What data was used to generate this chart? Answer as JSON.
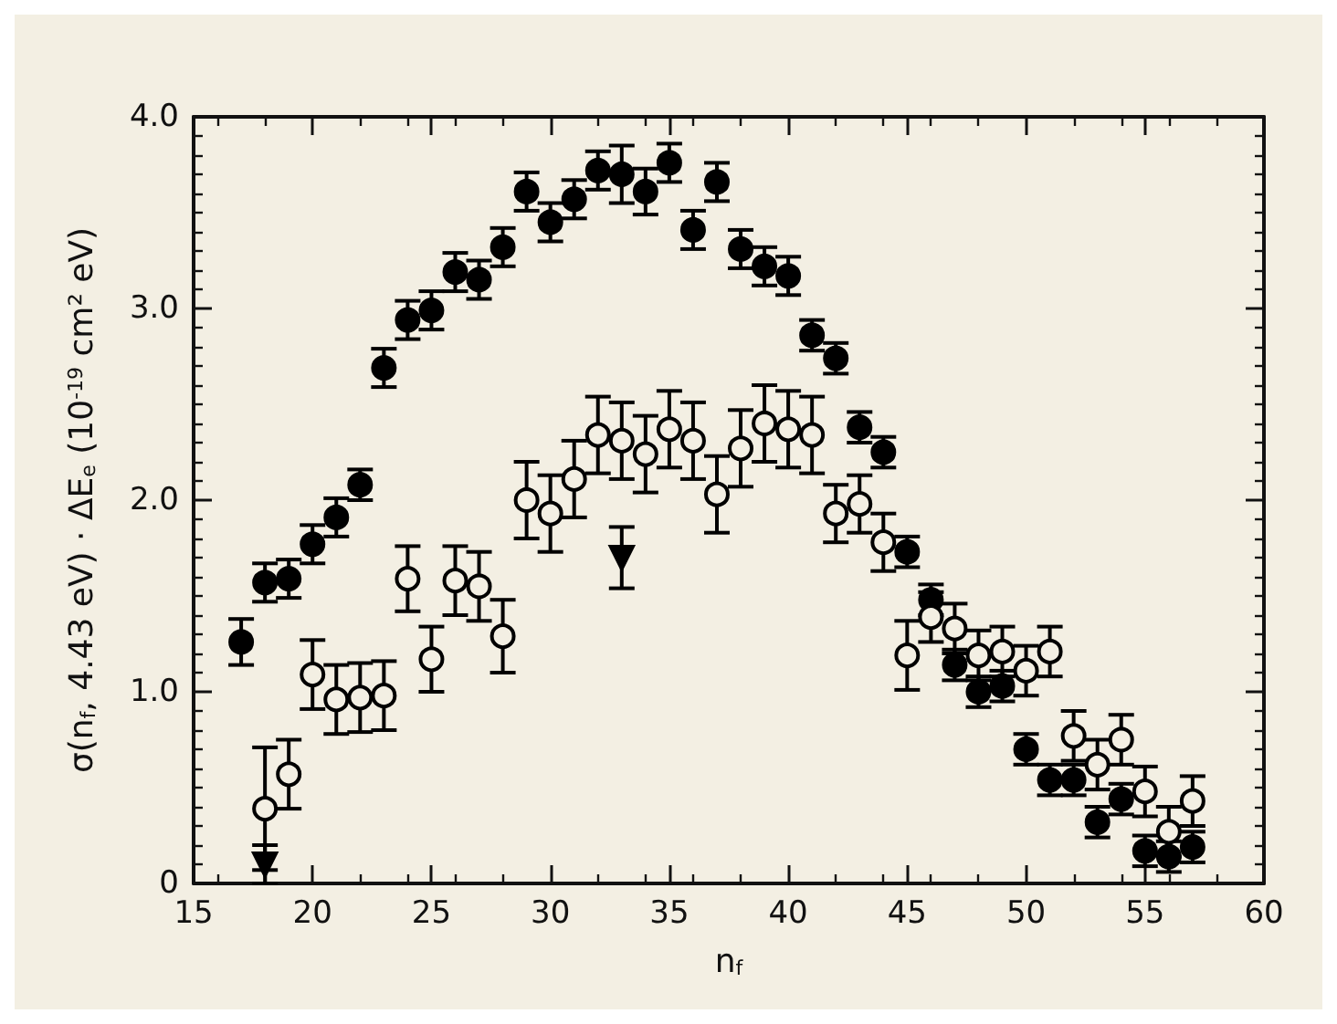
{
  "chart_data": {
    "type": "scatter",
    "xlabel": "n$_{f}$",
    "ylabel": "σ(n$_{f}$, 4.43 eV) · ΔE$_{e}$ (10$^{-19}$ cm² eV)",
    "xlim": [
      15,
      60
    ],
    "xticks": [
      15,
      20,
      25,
      30,
      35,
      40,
      45,
      50,
      55,
      60
    ],
    "ylim": [
      0,
      4
    ],
    "yticks": [
      0,
      {
        "value": 1,
        "label": "1.0"
      },
      {
        "value": 2,
        "label": "2.0"
      },
      {
        "value": 3,
        "label": "3.0"
      },
      {
        "value": 4,
        "label": "4.0"
      }
    ],
    "grid": false,
    "series": [
      {
        "color": "#000000",
        "marker": "circle",
        "x": [
          17,
          18,
          19,
          20,
          21,
          22,
          23,
          24,
          25,
          26,
          27,
          28,
          29,
          30,
          31,
          32,
          33,
          34,
          35,
          36,
          37,
          38,
          39,
          40,
          41,
          42,
          43,
          44,
          45,
          46,
          47,
          48,
          49,
          50,
          51,
          52,
          53,
          54,
          55,
          56,
          57
        ],
        "values": [
          1.26,
          1.57,
          1.59,
          1.77,
          1.91,
          2.08,
          2.69,
          2.94,
          2.99,
          3.19,
          3.15,
          3.32,
          3.61,
          3.45,
          3.57,
          3.72,
          3.7,
          3.61,
          3.76,
          3.41,
          3.66,
          3.31,
          3.22,
          3.17,
          2.86,
          2.74,
          2.38,
          2.25,
          1.73,
          1.48,
          1.14,
          1.0,
          1.03,
          0.7,
          0.54,
          0.54,
          0.32,
          0.44,
          0.17,
          0.14,
          0.19
        ],
        "errors": [
          0.12,
          0.1,
          0.1,
          0.1,
          0.1,
          0.08,
          0.1,
          0.1,
          0.1,
          0.1,
          0.1,
          0.1,
          0.1,
          0.1,
          0.1,
          0.1,
          0.15,
          0.12,
          0.1,
          0.1,
          0.1,
          0.1,
          0.1,
          0.1,
          0.08,
          0.08,
          0.08,
          0.08,
          0.08,
          0.08,
          0.08,
          0.08,
          0.08,
          0.08,
          0.08,
          0.08,
          0.08,
          0.08,
          0.08,
          0.08,
          0.08
        ]
      },
      {
        "color": "#000000",
        "marker": "open circle",
        "x": [
          18,
          19,
          20,
          21,
          22,
          23,
          24,
          25,
          26,
          27,
          28,
          29,
          30,
          31,
          32,
          33,
          34,
          35,
          36,
          37,
          38,
          39,
          40,
          41,
          42,
          43,
          44,
          45,
          46,
          47,
          48,
          49,
          50,
          51,
          52,
          53,
          54,
          55,
          56,
          57
        ],
        "values": [
          0.39,
          0.57,
          1.09,
          0.96,
          0.97,
          0.98,
          1.59,
          1.17,
          1.58,
          1.55,
          1.29,
          2.0,
          1.93,
          2.11,
          2.34,
          2.31,
          2.24,
          2.37,
          2.31,
          2.03,
          2.27,
          2.4,
          2.37,
          2.34,
          1.93,
          1.98,
          1.78,
          1.19,
          1.39,
          1.33,
          1.19,
          1.21,
          1.11,
          1.21,
          0.77,
          0.62,
          0.75,
          0.48,
          0.27,
          0.43
        ],
        "errors": [
          0.32,
          0.18,
          0.18,
          0.18,
          0.18,
          0.18,
          0.17,
          0.17,
          0.18,
          0.18,
          0.19,
          0.2,
          0.2,
          0.2,
          0.2,
          0.2,
          0.2,
          0.2,
          0.2,
          0.2,
          0.2,
          0.2,
          0.2,
          0.2,
          0.15,
          0.15,
          0.15,
          0.18,
          0.13,
          0.13,
          0.13,
          0.13,
          0.13,
          0.13,
          0.13,
          0.13,
          0.13,
          0.13,
          0.13,
          0.13
        ]
      },
      {
        "color": "#000000",
        "marker": "triangle",
        "x": [
          18,
          33
        ],
        "values": [
          0.1,
          1.7
        ],
        "errors": [
          0.1,
          0.16
        ]
      }
    ]
  }
}
